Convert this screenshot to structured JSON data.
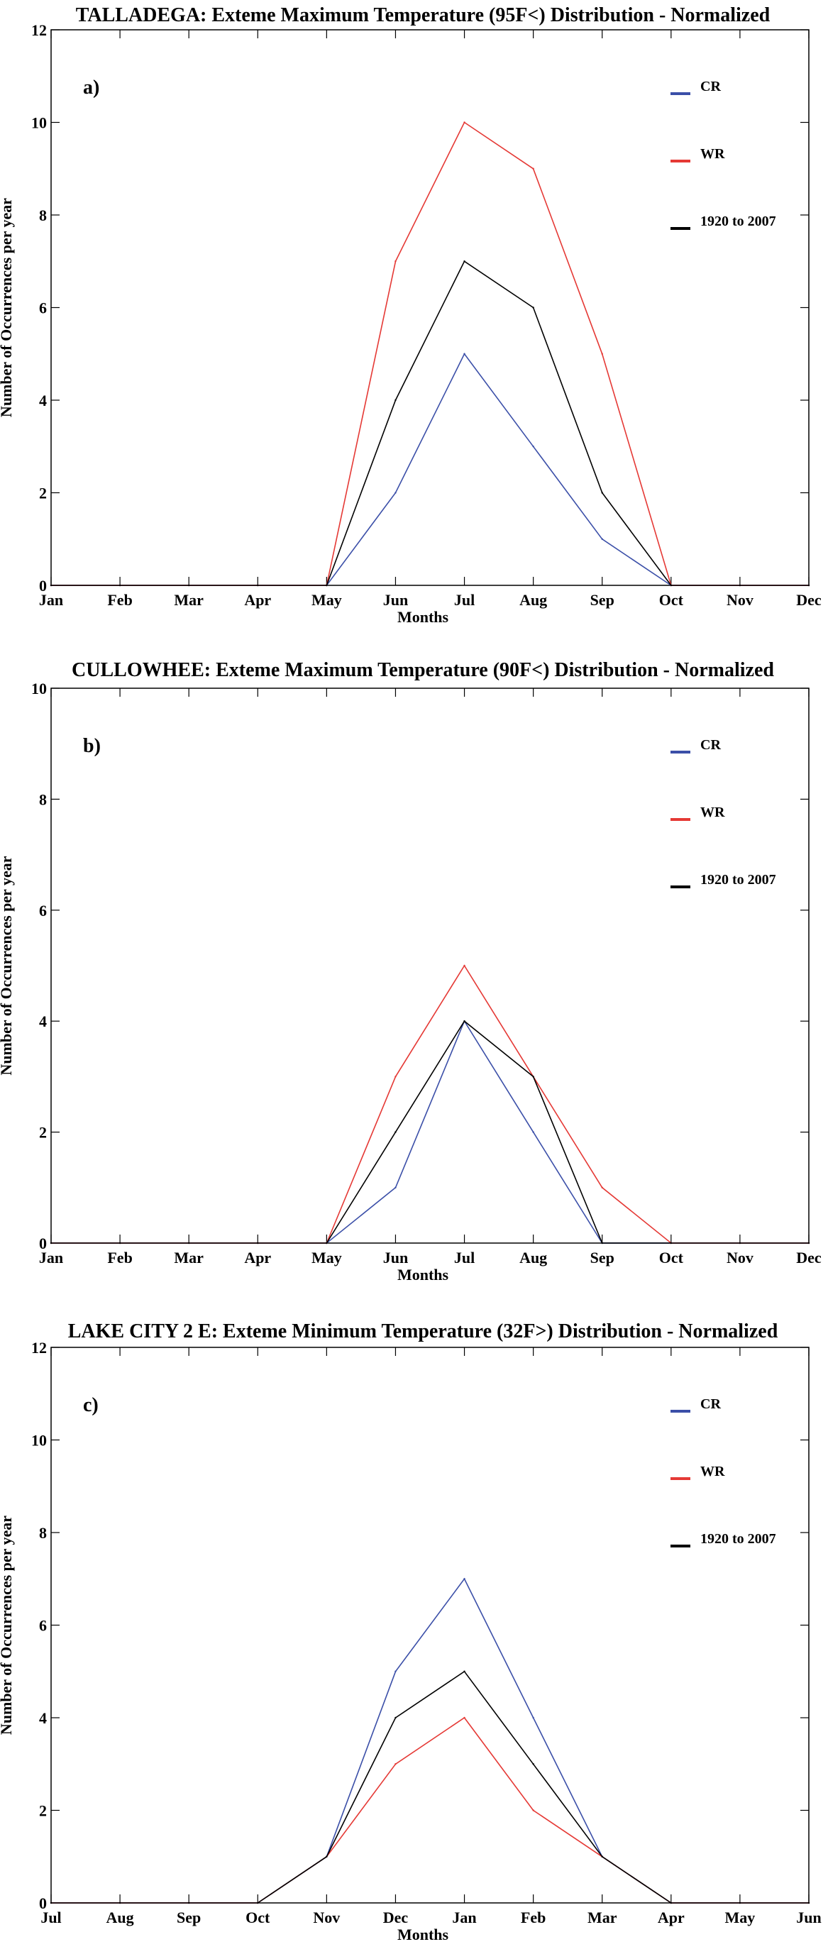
{
  "chart_data": [
    {
      "type": "line",
      "title": "TALLADEGA: Exteme Maximum Temperature (95F<) Distribution - Normalized",
      "panel_label": "a)",
      "xlabel": "Months",
      "ylabel": "Number of Occurrences per year",
      "categories": [
        "Jan",
        "Feb",
        "Mar",
        "Apr",
        "May",
        "Jun",
        "Jul",
        "Aug",
        "Sep",
        "Oct",
        "Nov",
        "Dec"
      ],
      "ylim": [
        0,
        12
      ],
      "yticks": [
        0,
        2,
        4,
        6,
        8,
        10,
        12
      ],
      "grid": false,
      "legend_position": "top-right",
      "series": [
        {
          "name": "CR",
          "color": "#3b4fa8",
          "values": [
            0,
            0,
            0,
            0,
            0,
            2,
            5,
            3,
            1,
            0,
            0,
            0
          ]
        },
        {
          "name": "WR",
          "color": "#e53935",
          "values": [
            0,
            0,
            0,
            0,
            0,
            7,
            10,
            9,
            5,
            0,
            0,
            0
          ]
        },
        {
          "name": "1920 to 2007",
          "color": "#000000",
          "values": [
            0,
            0,
            0,
            0,
            0,
            4,
            7,
            6,
            2,
            0,
            0,
            0
          ]
        }
      ]
    },
    {
      "type": "line",
      "title": "CULLOWHEE: Exteme Maximum Temperature (90F<) Distribution - Normalized",
      "panel_label": "b)",
      "xlabel": "Months",
      "ylabel": "Number of Occurrences per year",
      "categories": [
        "Jan",
        "Feb",
        "Mar",
        "Apr",
        "May",
        "Jun",
        "Jul",
        "Aug",
        "Sep",
        "Oct",
        "Nov",
        "Dec"
      ],
      "ylim": [
        0,
        10
      ],
      "yticks": [
        0,
        2,
        4,
        6,
        8,
        10
      ],
      "grid": false,
      "legend_position": "top-right",
      "series": [
        {
          "name": "CR",
          "color": "#3b4fa8",
          "values": [
            0,
            0,
            0,
            0,
            0,
            1,
            4,
            2,
            0,
            0,
            0,
            0
          ]
        },
        {
          "name": "WR",
          "color": "#e53935",
          "values": [
            0,
            0,
            0,
            0,
            0,
            3,
            5,
            3,
            1,
            0,
            0,
            0
          ]
        },
        {
          "name": "1920 to 2007",
          "color": "#000000",
          "values": [
            0,
            0,
            0,
            0,
            0,
            2,
            4,
            3,
            0,
            0,
            0,
            0
          ]
        }
      ]
    },
    {
      "type": "line",
      "title": "LAKE CITY 2 E: Exteme Minimum Temperature (32F>) Distribution - Normalized",
      "panel_label": "c)",
      "xlabel": "Months",
      "ylabel": "Number of Occurrences per year",
      "categories": [
        "Jul",
        "Aug",
        "Sep",
        "Oct",
        "Nov",
        "Dec",
        "Jan",
        "Feb",
        "Mar",
        "Apr",
        "May",
        "Jun"
      ],
      "ylim": [
        0,
        12
      ],
      "yticks": [
        0,
        2,
        4,
        6,
        8,
        10,
        12
      ],
      "grid": false,
      "legend_position": "top-right",
      "series": [
        {
          "name": "CR",
          "color": "#3b4fa8",
          "values": [
            0,
            0,
            0,
            0,
            1,
            5,
            7,
            4,
            1,
            0,
            0,
            0
          ]
        },
        {
          "name": "WR",
          "color": "#e53935",
          "values": [
            0,
            0,
            0,
            0,
            1,
            3,
            4,
            2,
            1,
            0,
            0,
            0
          ]
        },
        {
          "name": "1920 to 2007",
          "color": "#000000",
          "values": [
            0,
            0,
            0,
            0,
            1,
            4,
            5,
            3,
            1,
            0,
            0,
            0
          ]
        }
      ]
    }
  ]
}
